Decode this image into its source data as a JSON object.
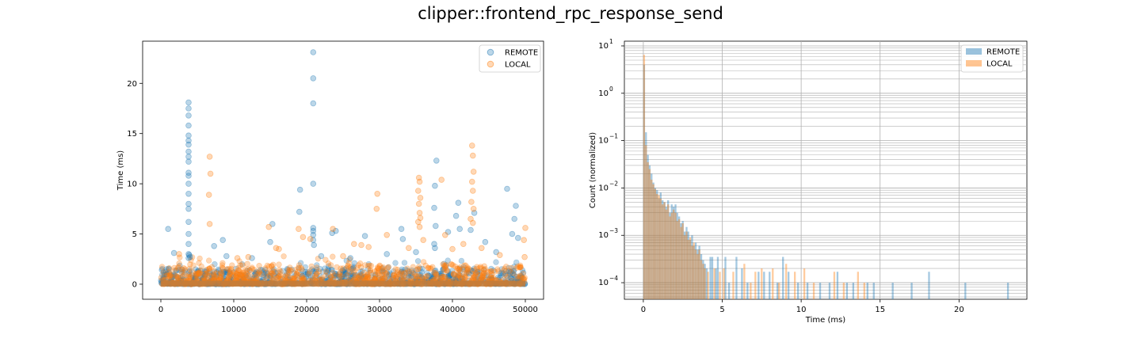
{
  "figure": {
    "title": "clipper::frontend_rpc_response_send"
  },
  "chart_data": [
    {
      "type": "scatter",
      "xlabel": "",
      "ylabel": "Time (ms)",
      "xlim": [
        -2500,
        52500
      ],
      "ylim": [
        -1.5,
        24.2
      ],
      "xticks": [
        0,
        10000,
        20000,
        30000,
        40000,
        50000
      ],
      "yticks": [
        0,
        5,
        10,
        15,
        20
      ],
      "legend": {
        "placement": "top-right"
      },
      "grid": false,
      "series": [
        {
          "name": "REMOTE",
          "color": "#1f77b4",
          "alpha": 0.3,
          "points": [
            [
              3800,
              18.1
            ],
            [
              3800,
              17.5
            ],
            [
              3800,
              16.8
            ],
            [
              3800,
              15.8
            ],
            [
              3800,
              14.8
            ],
            [
              3800,
              14.3
            ],
            [
              3800,
              13.9
            ],
            [
              3800,
              13.2
            ],
            [
              3800,
              12.7
            ],
            [
              3800,
              12.2
            ],
            [
              3800,
              11.1
            ],
            [
              3800,
              10.8
            ],
            [
              3800,
              10.0
            ],
            [
              3800,
              9.0
            ],
            [
              3800,
              8.0
            ],
            [
              3800,
              7.5
            ],
            [
              3800,
              6.2
            ],
            [
              3800,
              5.0
            ],
            [
              3800,
              4.0
            ],
            [
              3800,
              3.0
            ],
            [
              3800,
              2.6
            ],
            [
              3900,
              2.9
            ],
            [
              4000,
              2.7
            ],
            [
              1000,
              5.5
            ],
            [
              1800,
              3.1
            ],
            [
              7300,
              3.8
            ],
            [
              8500,
              4.4
            ],
            [
              9000,
              2.8
            ],
            [
              15000,
              4.2
            ],
            [
              15300,
              6.0
            ],
            [
              19000,
              7.2
            ],
            [
              19100,
              9.4
            ],
            [
              20900,
              23.1
            ],
            [
              20900,
              20.5
            ],
            [
              20900,
              18.0
            ],
            [
              20900,
              10.0
            ],
            [
              20900,
              5.6
            ],
            [
              20900,
              5.3
            ],
            [
              20900,
              4.9
            ],
            [
              20900,
              4.4
            ],
            [
              21000,
              3.9
            ],
            [
              22000,
              2.8
            ],
            [
              24000,
              5.3
            ],
            [
              23500,
              5.1
            ],
            [
              28000,
              4.8
            ],
            [
              33000,
              5.5
            ],
            [
              33200,
              4.5
            ],
            [
              37800,
              12.3
            ],
            [
              37600,
              9.8
            ],
            [
              37500,
              7.6
            ],
            [
              37700,
              5.8
            ],
            [
              37500,
              4.0
            ],
            [
              37600,
              3.6
            ],
            [
              39400,
              5.2
            ],
            [
              40500,
              6.8
            ],
            [
              40800,
              8.1
            ],
            [
              41000,
              5.5
            ],
            [
              43000,
              7.1
            ],
            [
              42500,
              5.4
            ],
            [
              47500,
              9.5
            ],
            [
              48200,
              5.0
            ],
            [
              48500,
              6.5
            ],
            [
              48700,
              7.8
            ],
            [
              49000,
              4.6
            ],
            [
              44500,
              4.2
            ],
            [
              46000,
              3.2
            ],
            [
              35000,
              3.2
            ],
            [
              31000,
              3.0
            ],
            [
              12500,
              2.6
            ],
            [
              26000,
              2.6
            ]
          ]
        },
        {
          "name": "LOCAL",
          "color": "#ff7f0e",
          "alpha": 0.3,
          "points": [
            [
              6700,
              12.7
            ],
            [
              6800,
              11.0
            ],
            [
              6600,
              8.9
            ],
            [
              6700,
              6.0
            ],
            [
              42700,
              13.8
            ],
            [
              42800,
              12.8
            ],
            [
              42900,
              11.2
            ],
            [
              42700,
              10.2
            ],
            [
              42800,
              9.3
            ],
            [
              42600,
              8.2
            ],
            [
              42900,
              7.5
            ],
            [
              42500,
              6.5
            ],
            [
              42800,
              6.1
            ],
            [
              35400,
              10.6
            ],
            [
              35500,
              10.2
            ],
            [
              35300,
              9.3
            ],
            [
              35600,
              8.6
            ],
            [
              35400,
              8.0
            ],
            [
              35500,
              7.1
            ],
            [
              35600,
              6.6
            ],
            [
              35300,
              6.2
            ],
            [
              35500,
              5.7
            ],
            [
              29700,
              9.0
            ],
            [
              29600,
              7.5
            ],
            [
              38500,
              10.4
            ],
            [
              50000,
              5.6
            ],
            [
              49800,
              4.4
            ],
            [
              49900,
              2.7
            ],
            [
              14800,
              5.7
            ],
            [
              15800,
              3.6
            ],
            [
              16200,
              3.5
            ],
            [
              18900,
              5.5
            ],
            [
              19500,
              4.7
            ],
            [
              20500,
              4.5
            ],
            [
              23600,
              5.5
            ],
            [
              25000,
              2.8
            ],
            [
              26500,
              4.0
            ],
            [
              27500,
              3.9
            ],
            [
              28500,
              3.7
            ],
            [
              31000,
              4.9
            ],
            [
              34000,
              3.6
            ],
            [
              36000,
              4.4
            ],
            [
              39000,
              4.9
            ],
            [
              40000,
              3.5
            ],
            [
              41500,
              4.0
            ],
            [
              44000,
              3.6
            ],
            [
              46500,
              2.9
            ],
            [
              2500,
              3.0
            ],
            [
              10500,
              2.6
            ],
            [
              12000,
              2.7
            ]
          ]
        }
      ],
      "dense_band": {
        "description_values": "most points lie between 0 and ~2 ms across x 0–50000",
        "ymax_typical": 1.8
      }
    },
    {
      "type": "bar",
      "subtype": "histogram",
      "xlabel": "Time (ms)",
      "ylabel": "Count (normalized)",
      "xlim": [
        -1.2,
        24.3
      ],
      "yscale": "log",
      "ylim_exp": [
        -4.35,
        1.1
      ],
      "xticks": [
        0,
        5,
        10,
        15,
        20
      ],
      "yticks": [
        "10^1",
        "10^0",
        "10^-1",
        "10^-2",
        "10^-3",
        "10^-4"
      ],
      "legend": {
        "placement": "top-right"
      },
      "grid": true,
      "bin_width": 0.116,
      "series": [
        {
          "name": "REMOTE",
          "color": "#1f77b4",
          "alpha": 0.4,
          "bins": [
            [
              0.05,
              4.0
            ],
            [
              0.17,
              0.15
            ],
            [
              0.29,
              0.05
            ],
            [
              0.4,
              0.03
            ],
            [
              0.52,
              0.02
            ],
            [
              0.64,
              0.013
            ],
            [
              0.75,
              0.01
            ],
            [
              0.87,
              0.009
            ],
            [
              0.99,
              0.006
            ],
            [
              1.1,
              0.008
            ],
            [
              1.22,
              0.0055
            ],
            [
              1.34,
              0.005
            ],
            [
              1.45,
              0.004
            ],
            [
              1.57,
              0.0055
            ],
            [
              1.69,
              0.003
            ],
            [
              1.8,
              0.0045
            ],
            [
              1.92,
              0.004
            ],
            [
              2.04,
              0.0045
            ],
            [
              2.15,
              0.003
            ],
            [
              2.27,
              0.0025
            ],
            [
              2.39,
              0.0018
            ],
            [
              2.5,
              0.002
            ],
            [
              2.62,
              0.0012
            ],
            [
              2.74,
              0.0015
            ],
            [
              2.85,
              0.0012
            ],
            [
              2.97,
              0.0008
            ],
            [
              3.09,
              0.001
            ],
            [
              3.2,
              0.0006
            ],
            [
              3.32,
              0.0007
            ],
            [
              3.44,
              0.0005
            ],
            [
              3.55,
              0.0006
            ],
            [
              3.67,
              0.0004
            ],
            [
              3.79,
              0.0003
            ],
            [
              3.9,
              0.00025
            ],
            [
              4.02,
              0.0002
            ],
            [
              4.25,
              0.00035
            ],
            [
              4.37,
              0.00035
            ],
            [
              4.6,
              0.0002
            ],
            [
              4.72,
              0.00035
            ],
            [
              5.2,
              0.00035
            ],
            [
              5.43,
              0.0001
            ],
            [
              5.9,
              0.00035
            ],
            [
              6.25,
              0.0002
            ],
            [
              6.6,
              0.0001
            ],
            [
              7.3,
              0.00017
            ],
            [
              7.65,
              0.00017
            ],
            [
              8.0,
              0.00017
            ],
            [
              8.5,
              0.0001
            ],
            [
              8.85,
              0.00035
            ],
            [
              9.2,
              0.00017
            ],
            [
              9.8,
              0.0001
            ],
            [
              10.4,
              0.0001
            ],
            [
              11.2,
              0.0001
            ],
            [
              11.8,
              0.0001
            ],
            [
              12.3,
              0.00017
            ],
            [
              12.9,
              0.0001
            ],
            [
              13.3,
              0.0001
            ],
            [
              14.2,
              0.0001
            ],
            [
              14.6,
              0.0001
            ],
            [
              15.8,
              0.0001
            ],
            [
              17.0,
              0.0001
            ],
            [
              18.1,
              0.00017
            ],
            [
              20.4,
              0.0001
            ],
            [
              23.1,
              0.0001
            ]
          ]
        },
        {
          "name": "LOCAL",
          "color": "#ff7f0e",
          "alpha": 0.4,
          "bins": [
            [
              0.05,
              6.5
            ],
            [
              0.17,
              0.08
            ],
            [
              0.29,
              0.035
            ],
            [
              0.4,
              0.025
            ],
            [
              0.52,
              0.015
            ],
            [
              0.64,
              0.012
            ],
            [
              0.75,
              0.0095
            ],
            [
              0.87,
              0.0075
            ],
            [
              0.99,
              0.007
            ],
            [
              1.1,
              0.006
            ],
            [
              1.22,
              0.0045
            ],
            [
              1.34,
              0.005
            ],
            [
              1.45,
              0.0035
            ],
            [
              1.57,
              0.0045
            ],
            [
              1.69,
              0.0025
            ],
            [
              1.8,
              0.003
            ],
            [
              1.92,
              0.0035
            ],
            [
              2.04,
              0.003
            ],
            [
              2.15,
              0.002
            ],
            [
              2.27,
              0.0022
            ],
            [
              2.39,
              0.0015
            ],
            [
              2.5,
              0.0018
            ],
            [
              2.62,
              0.001
            ],
            [
              2.74,
              0.0012
            ],
            [
              2.85,
              0.0008
            ],
            [
              2.97,
              0.0009
            ],
            [
              3.09,
              0.0006
            ],
            [
              3.2,
              0.0007
            ],
            [
              3.32,
              0.0005
            ],
            [
              3.44,
              0.0004
            ],
            [
              3.55,
              0.0005
            ],
            [
              3.67,
              0.0003
            ],
            [
              3.79,
              0.00025
            ],
            [
              3.9,
              0.0002
            ],
            [
              4.1,
              0.00017
            ],
            [
              4.5,
              0.0002
            ],
            [
              4.85,
              0.00017
            ],
            [
              5.1,
              0.0002
            ],
            [
              5.7,
              0.00017
            ],
            [
              6.4,
              0.00025
            ],
            [
              6.8,
              0.0001
            ],
            [
              7.1,
              0.00017
            ],
            [
              7.5,
              0.0002
            ],
            [
              8.2,
              0.0002
            ],
            [
              8.6,
              0.0001
            ],
            [
              9.05,
              0.00025
            ],
            [
              9.6,
              0.00017
            ],
            [
              10.2,
              0.0002
            ],
            [
              10.8,
              0.0001
            ],
            [
              12.1,
              0.00017
            ],
            [
              12.7,
              0.0001
            ],
            [
              13.6,
              0.00017
            ],
            [
              14.0,
              0.0001
            ]
          ]
        }
      ]
    }
  ]
}
